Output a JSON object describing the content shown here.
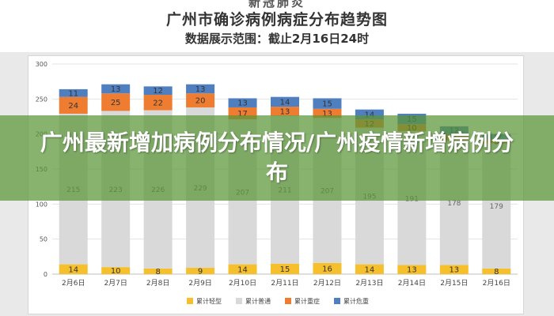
{
  "header": {
    "topline": "新冠肺炎",
    "title": "广州市确诊病例病症分布趋势图",
    "subtitle": "数据展示范围：截止2月16日24时"
  },
  "banner": {
    "text": "广州最新增加病例分布情况/广州疫情新增病例分布"
  },
  "chart_data": {
    "type": "bar",
    "stacked": true,
    "categories": [
      "2月6日",
      "2月7日",
      "2月8日",
      "2月9日",
      "2月10日",
      "2月11日",
      "2月12日",
      "2月13日",
      "2月14日",
      "2月15日",
      "2月16日"
    ],
    "series": [
      {
        "name": "累计轻型",
        "color": "#f5c02b",
        "values": [
          14,
          10,
          8,
          9,
          14,
          15,
          16,
          14,
          13,
          13,
          8
        ]
      },
      {
        "name": "累计普通",
        "color": "#d9d9d9",
        "values": [
          215,
          223,
          226,
          229,
          207,
          211,
          207,
          195,
          191,
          178,
          179
        ]
      },
      {
        "name": "累计重症",
        "color": "#ef7d31",
        "values": [
          24,
          25,
          22,
          20,
          17,
          13,
          13,
          12,
          10,
          8,
          5
        ]
      },
      {
        "name": "累计危重",
        "color": "#4f7fbf",
        "values": [
          11,
          13,
          12,
          13,
          13,
          14,
          15,
          14,
          15,
          12,
          8
        ]
      }
    ],
    "ylim": [
      0,
      300
    ],
    "yticks": [
      0,
      50,
      100,
      150,
      200,
      250,
      300
    ],
    "grid": true,
    "legend_position": "bottom"
  }
}
